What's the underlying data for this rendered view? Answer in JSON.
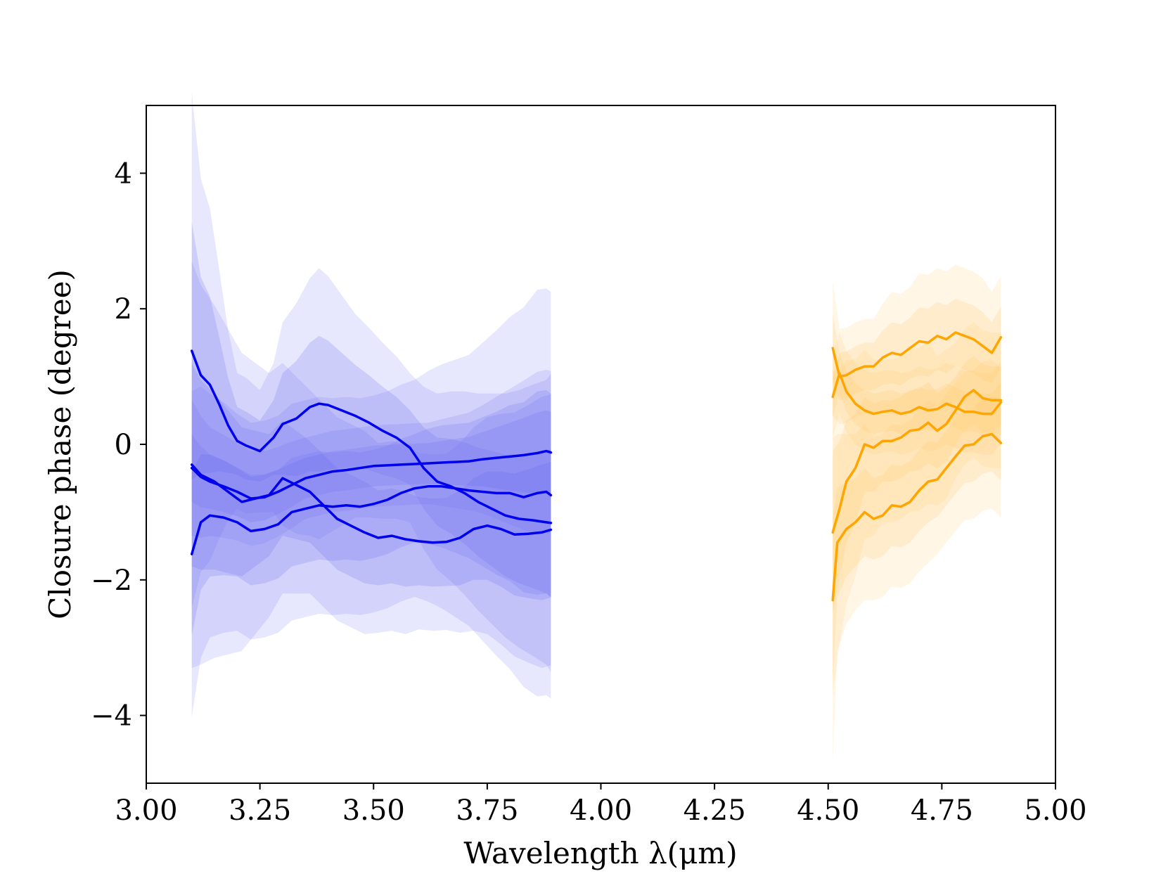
{
  "chart_data": {
    "type": "line",
    "title": "",
    "xlabel": "Wavelength λ(μm)",
    "ylabel": "Closure phase (degree)",
    "xlim": [
      3.0,
      5.0
    ],
    "ylim": [
      -5.0,
      5.0
    ],
    "xticks": [
      3.0,
      3.25,
      3.5,
      3.75,
      4.0,
      4.25,
      4.5,
      4.75,
      5.0
    ],
    "xtick_labels": [
      "3.00",
      "3.25",
      "3.50",
      "3.75",
      "4.00",
      "4.25",
      "4.50",
      "4.75",
      "5.00"
    ],
    "yticks": [
      4,
      2,
      0,
      -2,
      -4
    ],
    "ytick_labels": [
      "4",
      "2",
      "0",
      "−2",
      "−4"
    ],
    "grid": false,
    "legend": "none",
    "colors": {
      "blue": "#0000ee",
      "blue_band": "#6b6bf0",
      "orange": "#ffa500",
      "orange_band": "#ffc766"
    },
    "series": [
      {
        "group": "blue",
        "x": [
          3.1,
          3.12,
          3.14,
          3.16,
          3.18,
          3.2,
          3.22,
          3.25,
          3.28,
          3.3,
          3.33,
          3.36,
          3.38,
          3.4,
          3.43,
          3.46,
          3.49,
          3.52,
          3.55,
          3.58,
          3.61,
          3.64,
          3.67,
          3.7,
          3.73,
          3.76,
          3.79,
          3.82,
          3.85,
          3.88,
          3.89
        ],
        "y": [
          1.38,
          1.02,
          0.88,
          0.6,
          0.28,
          0.05,
          -0.02,
          -0.1,
          0.1,
          0.3,
          0.38,
          0.55,
          0.6,
          0.58,
          0.5,
          0.42,
          0.32,
          0.2,
          0.1,
          -0.05,
          -0.35,
          -0.55,
          -0.62,
          -0.72,
          -0.85,
          -0.95,
          -1.05,
          -1.1,
          -1.12,
          -1.15,
          -1.16
        ],
        "band": [
          1.9,
          1.45,
          1.3,
          1.0,
          0.7,
          0.5,
          0.5,
          0.45,
          0.55,
          0.75,
          0.85,
          0.95,
          1.0,
          0.95,
          0.85,
          0.75,
          0.7,
          0.65,
          0.6,
          0.55,
          0.6,
          0.65,
          0.7,
          0.75,
          0.8,
          0.85,
          0.9,
          0.95,
          1.0,
          1.05,
          1.1
        ]
      },
      {
        "group": "blue",
        "x": [
          3.1,
          3.12,
          3.14,
          3.17,
          3.2,
          3.23,
          3.26,
          3.29,
          3.32,
          3.35,
          3.38,
          3.41,
          3.44,
          3.47,
          3.5,
          3.53,
          3.56,
          3.59,
          3.62,
          3.65,
          3.68,
          3.71,
          3.74,
          3.77,
          3.8,
          3.83,
          3.86,
          3.88,
          3.89
        ],
        "y": [
          -0.35,
          -0.48,
          -0.55,
          -0.62,
          -0.7,
          -0.8,
          -0.78,
          -0.7,
          -0.6,
          -0.5,
          -0.45,
          -0.4,
          -0.38,
          -0.35,
          -0.32,
          -0.31,
          -0.3,
          -0.29,
          -0.28,
          -0.27,
          -0.26,
          -0.25,
          -0.22,
          -0.2,
          -0.18,
          -0.16,
          -0.13,
          -0.1,
          -0.12
        ],
        "band": [
          0.5,
          0.45,
          0.4,
          0.38,
          0.36,
          0.35,
          0.34,
          0.33,
          0.32,
          0.3,
          0.3,
          0.3,
          0.3,
          0.3,
          0.3,
          0.3,
          0.3,
          0.3,
          0.3,
          0.32,
          0.34,
          0.36,
          0.4,
          0.45,
          0.5,
          0.55,
          0.6,
          0.6,
          0.6
        ]
      },
      {
        "group": "blue",
        "x": [
          3.1,
          3.12,
          3.15,
          3.18,
          3.21,
          3.24,
          3.27,
          3.3,
          3.33,
          3.36,
          3.39,
          3.42,
          3.45,
          3.48,
          3.51,
          3.54,
          3.57,
          3.6,
          3.63,
          3.66,
          3.69,
          3.72,
          3.75,
          3.78,
          3.81,
          3.84,
          3.87,
          3.89
        ],
        "y": [
          -0.3,
          -0.45,
          -0.55,
          -0.7,
          -0.85,
          -0.8,
          -0.75,
          -0.5,
          -0.6,
          -0.7,
          -0.9,
          -1.1,
          -1.2,
          -1.3,
          -1.38,
          -1.35,
          -1.4,
          -1.43,
          -1.45,
          -1.44,
          -1.38,
          -1.25,
          -1.2,
          -1.25,
          -1.33,
          -1.32,
          -1.3,
          -1.26
        ],
        "band": [
          1.5,
          1.4,
          1.3,
          1.2,
          1.1,
          1.0,
          0.9,
          0.85,
          0.8,
          0.75,
          0.75,
          0.75,
          0.75,
          0.75,
          0.7,
          0.7,
          0.7,
          0.65,
          0.65,
          0.65,
          0.7,
          0.75,
          0.8,
          0.85,
          0.9,
          0.95,
          1.0,
          1.0
        ]
      },
      {
        "group": "blue",
        "x": [
          3.1,
          3.12,
          3.14,
          3.17,
          3.2,
          3.23,
          3.26,
          3.29,
          3.32,
          3.35,
          3.38,
          3.41,
          3.44,
          3.47,
          3.5,
          3.53,
          3.56,
          3.59,
          3.62,
          3.65,
          3.68,
          3.71,
          3.74,
          3.77,
          3.8,
          3.83,
          3.86,
          3.88,
          3.89
        ],
        "y": [
          -1.62,
          -1.15,
          -1.05,
          -1.08,
          -1.15,
          -1.28,
          -1.25,
          -1.18,
          -1.0,
          -0.95,
          -0.9,
          -0.92,
          -0.9,
          -0.92,
          -0.88,
          -0.82,
          -0.72,
          -0.65,
          -0.62,
          -0.62,
          -0.65,
          -0.68,
          -0.7,
          -0.72,
          -0.72,
          -0.78,
          -0.72,
          -0.7,
          -0.75
        ],
        "band": [
          1.2,
          1.0,
          0.9,
          0.85,
          0.8,
          0.8,
          0.8,
          0.8,
          0.8,
          0.8,
          0.8,
          0.8,
          0.8,
          0.8,
          0.8,
          0.8,
          0.8,
          0.8,
          0.85,
          0.9,
          0.95,
          1.0,
          1.1,
          1.2,
          1.3,
          1.4,
          1.5,
          1.5,
          1.5
        ]
      },
      {
        "group": "orange",
        "x": [
          4.51,
          4.525,
          4.54,
          4.56,
          4.58,
          4.6,
          4.62,
          4.64,
          4.66,
          4.68,
          4.7,
          4.72,
          4.74,
          4.76,
          4.78,
          4.8,
          4.82,
          4.84,
          4.86,
          4.88
        ],
        "y": [
          1.42,
          1.0,
          1.02,
          1.1,
          1.15,
          1.15,
          1.28,
          1.35,
          1.32,
          1.42,
          1.52,
          1.5,
          1.6,
          1.55,
          1.65,
          1.6,
          1.55,
          1.45,
          1.35,
          1.58
        ],
        "band": [
          0.5,
          0.35,
          0.35,
          0.35,
          0.35,
          0.35,
          0.4,
          0.45,
          0.45,
          0.45,
          0.5,
          0.5,
          0.5,
          0.5,
          0.5,
          0.5,
          0.5,
          0.5,
          0.45,
          0.45
        ]
      },
      {
        "group": "orange",
        "x": [
          4.51,
          4.525,
          4.54,
          4.56,
          4.58,
          4.6,
          4.62,
          4.64,
          4.66,
          4.68,
          4.7,
          4.72,
          4.74,
          4.76,
          4.78,
          4.8,
          4.82,
          4.84,
          4.86,
          4.88
        ],
        "y": [
          0.7,
          1.05,
          0.78,
          0.6,
          0.5,
          0.45,
          0.48,
          0.5,
          0.45,
          0.48,
          0.55,
          0.5,
          0.52,
          0.6,
          0.55,
          0.48,
          0.48,
          0.45,
          0.45,
          0.62
        ],
        "band": [
          0.3,
          0.3,
          0.3,
          0.3,
          0.3,
          0.3,
          0.3,
          0.3,
          0.3,
          0.3,
          0.3,
          0.3,
          0.3,
          0.3,
          0.3,
          0.3,
          0.3,
          0.3,
          0.3,
          0.3
        ]
      },
      {
        "group": "orange",
        "x": [
          4.51,
          4.525,
          4.54,
          4.56,
          4.58,
          4.6,
          4.62,
          4.64,
          4.66,
          4.68,
          4.7,
          4.72,
          4.74,
          4.76,
          4.78,
          4.8,
          4.82,
          4.84,
          4.86,
          4.88
        ],
        "y": [
          -1.3,
          -0.95,
          -0.55,
          -0.35,
          0.0,
          -0.05,
          0.05,
          0.05,
          0.1,
          0.2,
          0.22,
          0.32,
          0.2,
          0.3,
          0.5,
          0.7,
          0.8,
          0.68,
          0.65,
          0.65
        ],
        "band": [
          1.2,
          1.0,
          0.9,
          0.8,
          0.7,
          0.65,
          0.6,
          0.6,
          0.6,
          0.6,
          0.6,
          0.6,
          0.55,
          0.55,
          0.5,
          0.5,
          0.5,
          0.5,
          0.5,
          0.5
        ]
      },
      {
        "group": "orange",
        "x": [
          4.51,
          4.52,
          4.54,
          4.56,
          4.58,
          4.6,
          4.62,
          4.64,
          4.66,
          4.68,
          4.7,
          4.72,
          4.74,
          4.76,
          4.78,
          4.8,
          4.82,
          4.84,
          4.86,
          4.88
        ],
        "y": [
          -2.3,
          -1.45,
          -1.25,
          -1.15,
          -1.0,
          -1.1,
          -1.05,
          -0.9,
          -0.92,
          -0.85,
          -0.68,
          -0.55,
          -0.52,
          -0.35,
          -0.18,
          -0.02,
          0.0,
          0.12,
          0.15,
          0.02
        ],
        "band": [
          1.2,
          0.8,
          0.7,
          0.65,
          0.65,
          0.6,
          0.6,
          0.6,
          0.6,
          0.6,
          0.6,
          0.6,
          0.55,
          0.55,
          0.55,
          0.55,
          0.55,
          0.55,
          0.55,
          0.55
        ]
      }
    ]
  }
}
